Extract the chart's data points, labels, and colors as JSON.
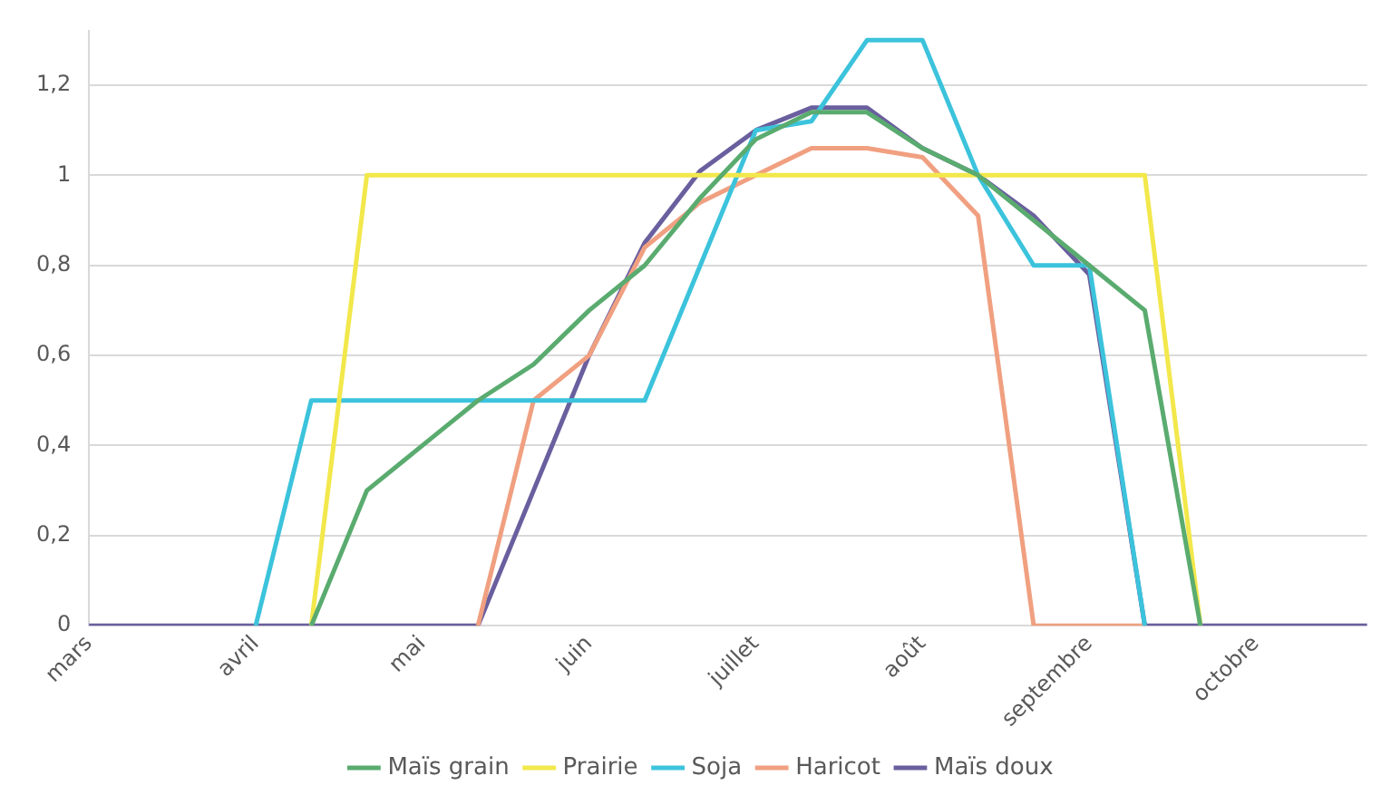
{
  "chart_data": {
    "type": "line",
    "categories": [
      "mars",
      null,
      null,
      "avril",
      null,
      null,
      "mai",
      null,
      null,
      "juin",
      null,
      null,
      "juillet",
      null,
      null,
      "août",
      null,
      null,
      "septembre",
      null,
      null,
      "octobre",
      null,
      null
    ],
    "series": [
      {
        "name": "Maïs grain",
        "color": "#5aab6f",
        "values": [
          null,
          null,
          null,
          null,
          0,
          0.3,
          0.4,
          0.5,
          0.58,
          0.7,
          0.8,
          0.95,
          1.08,
          1.14,
          1.14,
          1.06,
          1,
          0.9,
          0.8,
          0.7,
          0,
          null,
          null,
          null
        ]
      },
      {
        "name": "Prairie",
        "color": "#f2e84b",
        "values": [
          null,
          null,
          null,
          null,
          0,
          1,
          1,
          1,
          1,
          1,
          1,
          1,
          1,
          1,
          1,
          1,
          1,
          1,
          1,
          1,
          0,
          null,
          null,
          null
        ]
      },
      {
        "name": "Soja",
        "color": "#3cc3dc",
        "values": [
          null,
          null,
          null,
          0,
          0.5,
          0.5,
          0.5,
          0.5,
          0.5,
          0.5,
          0.5,
          0.8,
          1.1,
          1.12,
          1.3,
          1.3,
          1,
          0.8,
          0.8,
          0,
          null,
          null,
          null,
          null
        ]
      },
      {
        "name": "Haricot",
        "color": "#f0a080",
        "values": [
          null,
          null,
          null,
          null,
          null,
          null,
          null,
          0,
          0.5,
          0.6,
          0.84,
          0.94,
          1,
          1.06,
          1.06,
          1.04,
          0.91,
          0,
          0,
          0,
          null,
          null,
          null,
          null
        ]
      },
      {
        "name": "Maïs doux",
        "color": "#6a5f9e",
        "values": [
          0,
          0,
          0,
          0,
          0,
          0,
          0,
          0,
          0.3,
          0.6,
          0.85,
          1.01,
          1.1,
          1.15,
          1.15,
          1.06,
          1,
          0.91,
          0.78,
          0,
          0,
          0,
          0,
          0
        ]
      }
    ],
    "ylim": [
      0,
      1.32
    ],
    "yticks": [
      0,
      {
        "value": 0.2,
        "label": "0,2"
      },
      {
        "value": 0.4,
        "label": "0,4"
      },
      {
        "value": 0.6,
        "label": "0,6"
      },
      {
        "value": 0.8,
        "label": "0,8"
      },
      1,
      {
        "value": 1.2,
        "label": "1,2"
      }
    ],
    "grid": "y",
    "legend": "bottom",
    "marker": "none",
    "line_style": "solid"
  }
}
